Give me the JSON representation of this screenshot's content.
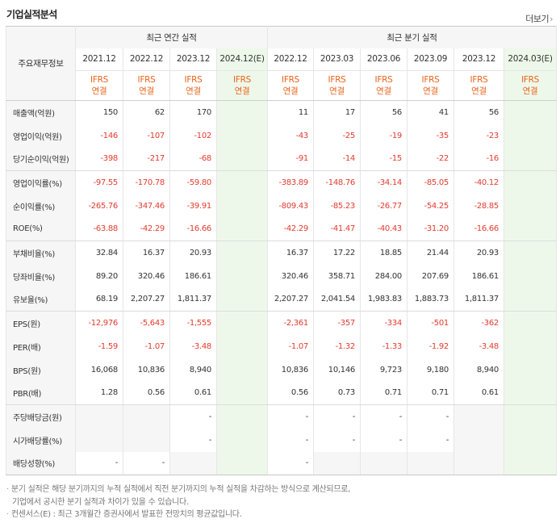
{
  "title": "기업실적분석",
  "more_label": "더보기",
  "header": {
    "corner": "주요재무정보",
    "annual_label": "최근 연간 실적",
    "quarter_label": "최근 분기 실적",
    "annual_dates": [
      "2021.12",
      "2022.12",
      "2023.12",
      "2024.12(E)"
    ],
    "quarter_dates": [
      "2022.12",
      "2023.03",
      "2023.06",
      "2023.09",
      "2023.12",
      "2024.03(E)"
    ],
    "ifrs_top": "IFRS",
    "ifrs_bottom": "연결"
  },
  "rows": [
    {
      "label": "매출액(억원)",
      "annual": [
        "150",
        "62",
        "170",
        ""
      ],
      "quarter": [
        "11",
        "17",
        "56",
        "41",
        "56",
        ""
      ]
    },
    {
      "label": "영업이익(억원)",
      "annual": [
        "-146",
        "-107",
        "-102",
        ""
      ],
      "quarter": [
        "-43",
        "-25",
        "-19",
        "-35",
        "-23",
        ""
      ]
    },
    {
      "label": "당기순이익(억원)",
      "annual": [
        "-398",
        "-217",
        "-68",
        ""
      ],
      "quarter": [
        "-91",
        "-14",
        "-15",
        "-22",
        "-16",
        ""
      ]
    },
    {
      "label": "영업이익률(%)",
      "annual": [
        "-97.55",
        "-170.78",
        "-59.80",
        ""
      ],
      "quarter": [
        "-383.89",
        "-148.76",
        "-34.14",
        "-85.05",
        "-40.12",
        ""
      ]
    },
    {
      "label": "순이익률(%)",
      "annual": [
        "-265.76",
        "-347.46",
        "-39.91",
        ""
      ],
      "quarter": [
        "-809.43",
        "-85.23",
        "-26.77",
        "-54.25",
        "-28.85",
        ""
      ]
    },
    {
      "label": "ROE(%)",
      "annual": [
        "-63.88",
        "-42.29",
        "-16.66",
        ""
      ],
      "quarter": [
        "-42.29",
        "-41.47",
        "-40.43",
        "-31.20",
        "-16.66",
        ""
      ]
    },
    {
      "label": "부채비율(%)",
      "annual": [
        "32.84",
        "16.37",
        "20.93",
        ""
      ],
      "quarter": [
        "16.37",
        "17.22",
        "18.85",
        "21.44",
        "20.93",
        ""
      ]
    },
    {
      "label": "당좌비율(%)",
      "annual": [
        "89.20",
        "320.46",
        "186.61",
        ""
      ],
      "quarter": [
        "320.46",
        "358.71",
        "284.00",
        "207.69",
        "186.61",
        ""
      ]
    },
    {
      "label": "유보율(%)",
      "annual": [
        "68.19",
        "2,207.27",
        "1,811.37",
        ""
      ],
      "quarter": [
        "2,207.27",
        "2,041.54",
        "1,983.83",
        "1,883.73",
        "1,811.37",
        ""
      ]
    },
    {
      "label": "EPS(원)",
      "annual": [
        "-12,976",
        "-5,643",
        "-1,555",
        ""
      ],
      "quarter": [
        "-2,361",
        "-357",
        "-334",
        "-501",
        "-362",
        ""
      ]
    },
    {
      "label": "PER(배)",
      "annual": [
        "-1.59",
        "-1.07",
        "-3.48",
        ""
      ],
      "quarter": [
        "-1.07",
        "-1.32",
        "-1.33",
        "-1.92",
        "-3.48",
        ""
      ]
    },
    {
      "label": "BPS(원)",
      "annual": [
        "16,068",
        "10,836",
        "8,940",
        ""
      ],
      "quarter": [
        "10,836",
        "10,146",
        "9,723",
        "9,180",
        "8,940",
        ""
      ]
    },
    {
      "label": "PBR(배)",
      "annual": [
        "1.28",
        "0.56",
        "0.61",
        ""
      ],
      "quarter": [
        "0.56",
        "0.73",
        "0.71",
        "0.71",
        "0.61",
        ""
      ]
    },
    {
      "label": "주당배당금(원)",
      "annual": [
        "",
        "",
        "-",
        ""
      ],
      "quarter": [
        "-",
        "-",
        "-",
        "-",
        "",
        ""
      ]
    },
    {
      "label": "시가배당률(%)",
      "annual": [
        "",
        "",
        "-",
        ""
      ],
      "quarter": [
        "-",
        "-",
        "-",
        "-",
        "",
        ""
      ]
    },
    {
      "label": "배당성향(%)",
      "annual": [
        "-",
        "-",
        "",
        ""
      ],
      "quarter": [
        "-",
        "",
        "",
        "",
        "",
        ""
      ]
    }
  ],
  "notes": [
    "분기 실적은 해당 분기까지의 누적 실적에서 직전 분기까지의 누적 실적을 차감하는 방식으로 계산되므로,",
    "기업에서 공시한 분기 실적과 차이가 있을 수 있습니다.",
    "컨센서스(E) : 최근 3개월간 증권사에서 발표한 전망치의 평균값입니다."
  ],
  "colors": {
    "accent": "#e9631b",
    "negative": "#e23b2e",
    "estimate_bg": "#eef8ea",
    "header_bg": "#f6f6f6"
  }
}
